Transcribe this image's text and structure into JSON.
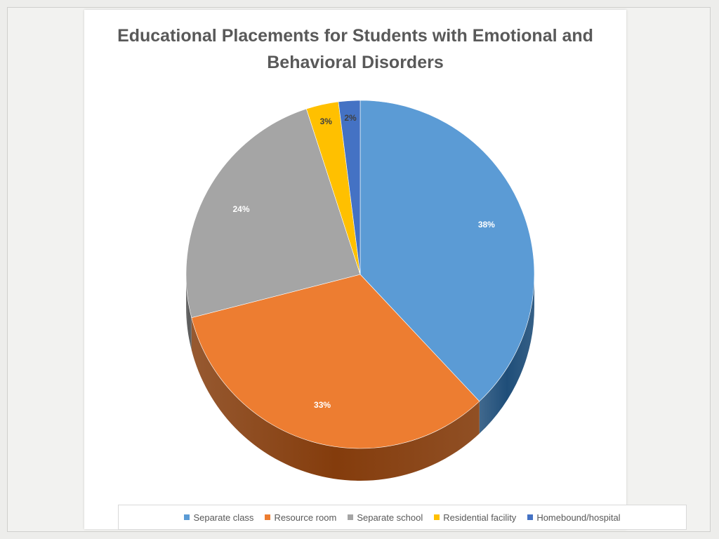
{
  "chart_data": {
    "type": "pie",
    "title": "Educational Placements for Students with Emotional and Behavioral Disorders",
    "categories": [
      "Separate class",
      "Resource room",
      "Separate school",
      "Residential facility",
      "Homebound/hospital"
    ],
    "values": [
      38,
      33,
      24,
      3,
      2
    ],
    "data_labels": [
      "38%",
      "33%",
      "24%",
      "3%",
      "2%"
    ],
    "colors": [
      "#5b9bd5",
      "#ed7d31",
      "#a5a5a5",
      "#ffc000",
      "#4472c4"
    ],
    "side_colors": [
      "#1f4e79",
      "#843c0c",
      "#595959",
      "#7f6000",
      "#1f3864"
    ],
    "label_colors": [
      "#ffffff",
      "#ffffff",
      "#ffffff",
      "#404040",
      "#404040"
    ],
    "legend_position": "bottom",
    "style": "3d"
  }
}
